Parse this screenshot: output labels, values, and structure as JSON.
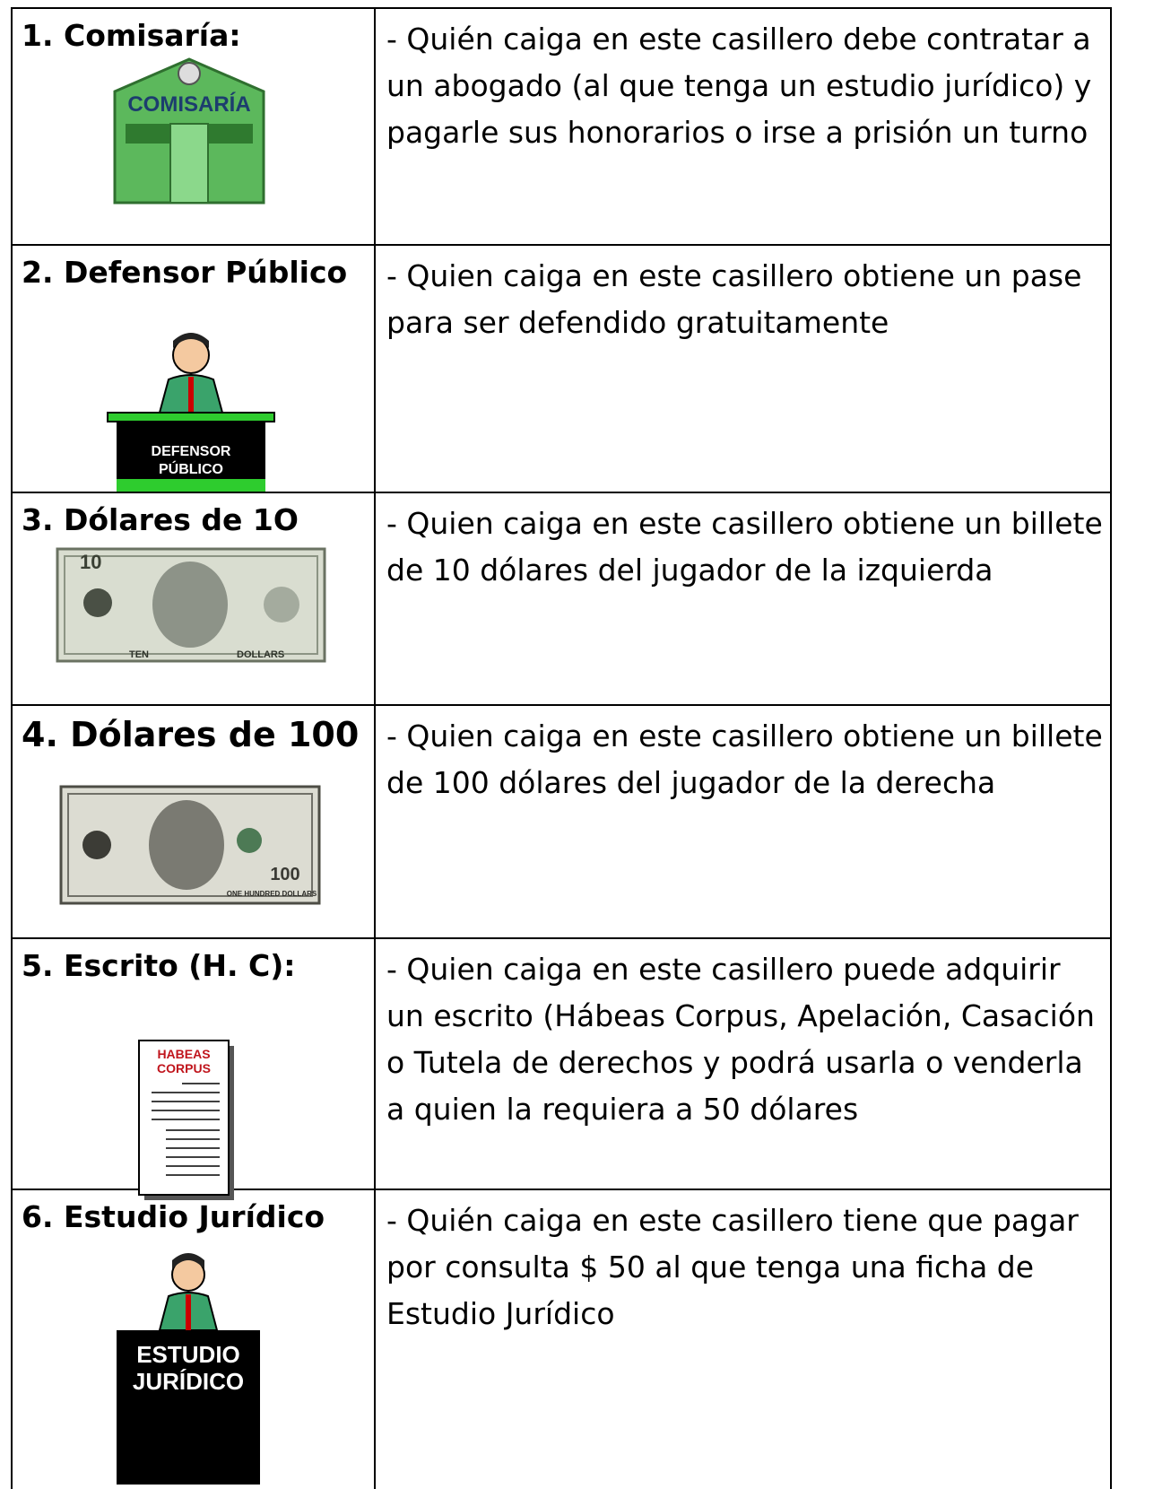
{
  "table": {
    "rows": [
      {
        "label": "1. Comisaría:",
        "image_text": [
          "COMISARÍA"
        ],
        "description": [
          "- Quién caiga en este casillero debe contratar a",
          "un abogado (al que tenga un estudio jurídico) y",
          "pagarle sus honorarios o irse a prisión un turno"
        ]
      },
      {
        "label": "2. Defensor Público",
        "image_text": [
          "DEFENSOR",
          "PÚBLICO"
        ],
        "description": [
          "- Quien caiga en este casillero obtiene un pase",
          "para ser defendido gratuitamente"
        ]
      },
      {
        "label": "3. Dólares de 1O",
        "image_text": [
          "10",
          "TEN",
          "DOLLARS"
        ],
        "description": [
          "- Quien caiga en este casillero obtiene un billete",
          "de 10 dólares del jugador de la izquierda"
        ]
      },
      {
        "label": "4. Dólares de 100",
        "image_text": [
          "100",
          "ONE HUNDRED DOLLARS"
        ],
        "description": [
          "- Quien caiga en este casillero obtiene un billete",
          "de 100 dólares del jugador de la derecha"
        ]
      },
      {
        "label": "5. Escrito (H. C):",
        "image_text": [
          "HABEAS",
          "CORPUS"
        ],
        "description": [
          "- Quien caiga en este casillero puede adquirir",
          "un escrito (Hábeas Corpus, Apelación, Casación",
          "o Tutela de derechos y podrá usarla o venderla",
          "a quien la requiera a 50 dólares"
        ]
      },
      {
        "label": "6. Estudio Jurídico",
        "image_text": [
          "ESTUDIO",
          "JURÍDICO"
        ],
        "description": [
          "- Quién caiga en este casillero tiene que pagar",
          "por consulta $ 50 al que tenga una ficha de",
          "Estudio Jurídico"
        ]
      }
    ]
  }
}
